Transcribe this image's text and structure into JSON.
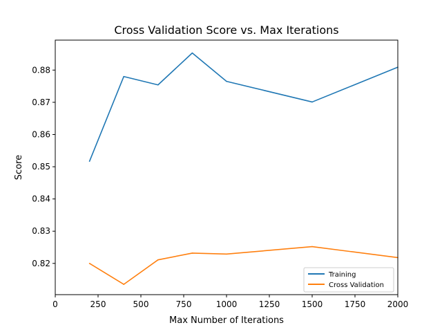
{
  "chart_data": {
    "type": "line",
    "title": "Cross Validation Score vs. Max Iterations",
    "xlabel": "Max Number of Iterations",
    "ylabel": "Score",
    "xlim": [
      0,
      2000
    ],
    "ylim": [
      0.8103,
      0.8893
    ],
    "xticks": [
      0,
      250,
      500,
      750,
      1000,
      1250,
      1500,
      1750,
      2000
    ],
    "xtick_labels": [
      "0",
      "250",
      "500",
      "750",
      "1000",
      "1250",
      "1500",
      "1750",
      "2000"
    ],
    "yticks": [
      0.82,
      0.83,
      0.84,
      0.85,
      0.86,
      0.87,
      0.88
    ],
    "ytick_labels": [
      "0.82",
      "0.83",
      "0.84",
      "0.85",
      "0.86",
      "0.87",
      "0.88"
    ],
    "grid": false,
    "legend_position": "lower-right",
    "x": [
      200,
      400,
      600,
      800,
      1000,
      1500,
      2000
    ],
    "series": [
      {
        "name": "Training",
        "color": "#1f77b4",
        "values": [
          0.8517,
          0.878,
          0.8754,
          0.8853,
          0.8765,
          0.8701,
          0.8809
        ]
      },
      {
        "name": "Cross Validation",
        "color": "#ff7f0e",
        "values": [
          0.82,
          0.8135,
          0.8211,
          0.8232,
          0.8229,
          0.8252,
          0.8218
        ]
      }
    ]
  }
}
